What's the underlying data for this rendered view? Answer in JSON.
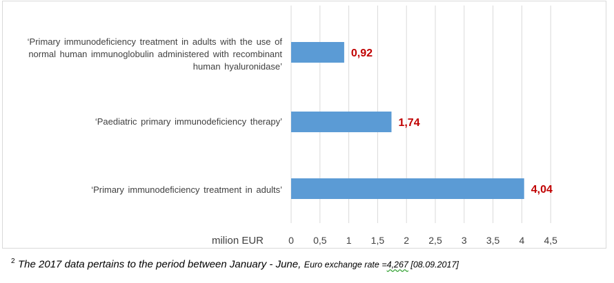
{
  "chart_data": {
    "type": "bar",
    "orientation": "horizontal",
    "categories": [
      "‘Primary immunodeficiency  treatment  in adults with the use of normal human immunoglobulin  administered  with recombinant human hyaluronidase’",
      "‘Paediatric  primary  immunodeficiency  therapy’",
      "‘Primary  immunodeficiency  treatment  in adults’"
    ],
    "values": [
      0.92,
      1.74,
      4.04
    ],
    "data_labels": [
      "0,92",
      "1,74",
      "4,04"
    ],
    "xlabel": "milion EUR",
    "xlim": [
      0,
      4.5
    ],
    "ticks": [
      "0",
      "0,5",
      "1",
      "1,5",
      "2",
      "2,5",
      "3",
      "3,5",
      "4",
      "4,5"
    ],
    "grid": true,
    "bar_color": "#5b9bd5",
    "label_color": "#c00000"
  },
  "footnote": {
    "sup": "2",
    "main": "The 2017 data pertains to the period between January - June,",
    "rest_prefix": "Euro exchange rate =",
    "rate": "4,267",
    "date": "  [08.09.2017]"
  }
}
